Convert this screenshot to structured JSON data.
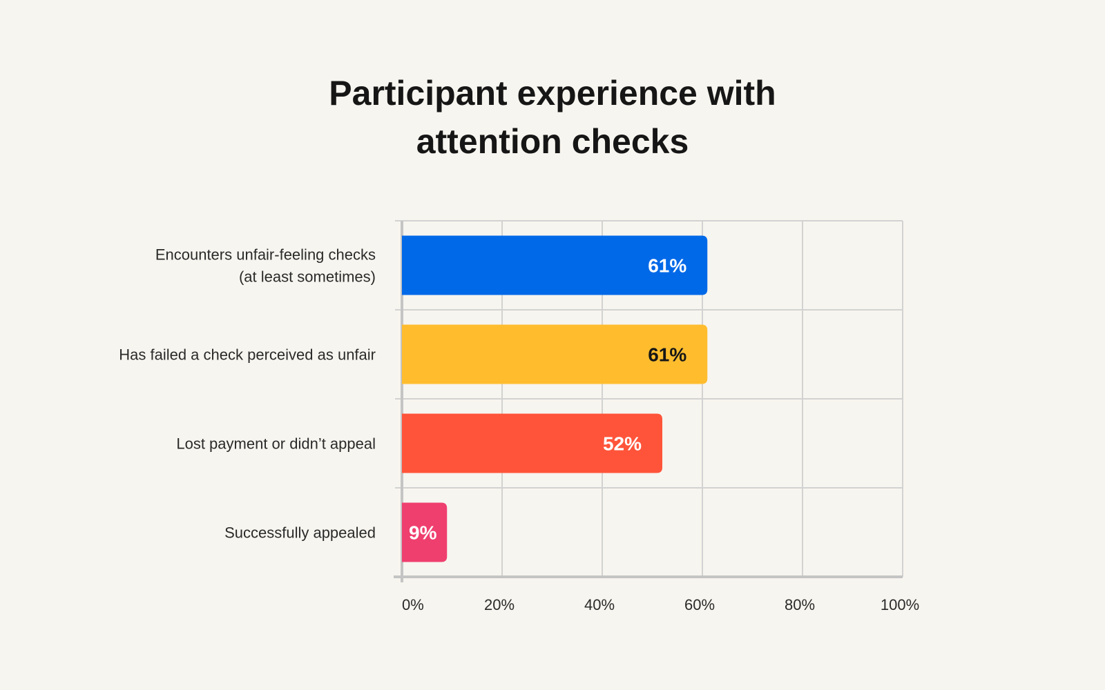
{
  "chart_data": {
    "type": "bar",
    "orientation": "horizontal",
    "title_lines": [
      "Participant experience with",
      "attention checks"
    ],
    "categories": [
      [
        "Encounters unfair-feeling checks",
        "(at least sometimes)"
      ],
      [
        "Has failed a check perceived as unfair"
      ],
      [
        "Lost payment or didn’t appeal"
      ],
      [
        "Successfully appealed"
      ]
    ],
    "values": [
      61,
      61,
      52,
      9
    ],
    "value_labels": [
      "61%",
      "61%",
      "52%",
      "9%"
    ],
    "bar_colors": [
      "#0069e8",
      "#ffbd2e",
      "#ff543a",
      "#ef3f6f"
    ],
    "label_colors": [
      "#ffffff",
      "#161616",
      "#ffffff",
      "#ffffff"
    ],
    "xlim": [
      0,
      100
    ],
    "xticks": [
      0,
      20,
      40,
      60,
      80,
      100
    ],
    "xtick_labels": [
      "0%",
      "20%",
      "40%",
      "60%",
      "80%",
      "100%"
    ],
    "grid": true,
    "grid_color": "#d2d2d2"
  }
}
